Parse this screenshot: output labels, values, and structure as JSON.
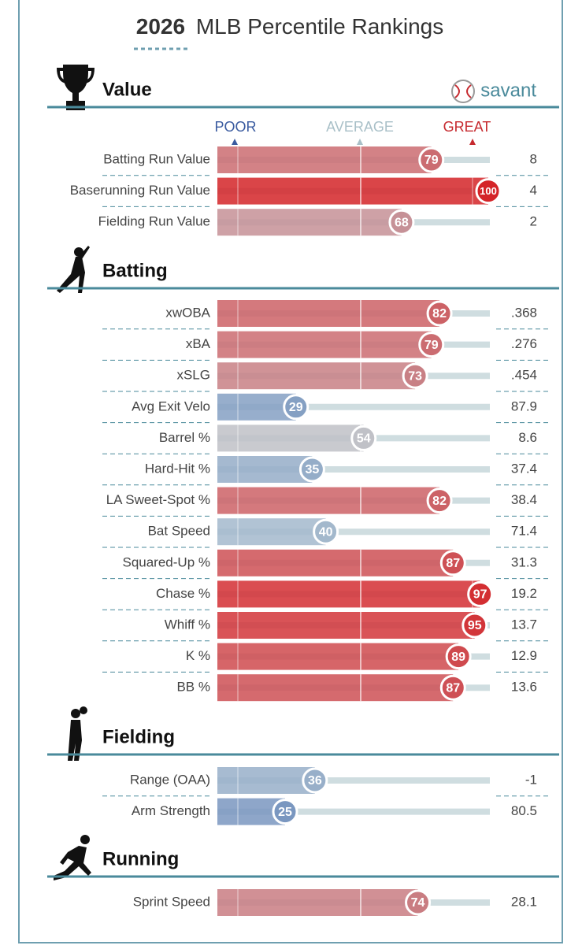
{
  "header": {
    "year": "2026",
    "title": "MLB Percentile Rankings",
    "logo": "savant"
  },
  "scale": {
    "poor": "POOR",
    "average": "AVERAGE",
    "great": "GREAT"
  },
  "sections": [
    {
      "title": "Value",
      "rows": [
        {
          "label": "Batting Run Value",
          "percentile": 79,
          "value": "8"
        },
        {
          "label": "Baserunning Run Value",
          "percentile": 100,
          "value": "4"
        },
        {
          "label": "Fielding Run Value",
          "percentile": 68,
          "value": "2"
        }
      ]
    },
    {
      "title": "Batting",
      "rows": [
        {
          "label": "xwOBA",
          "percentile": 82,
          "value": ".368"
        },
        {
          "label": "xBA",
          "percentile": 79,
          "value": ".276"
        },
        {
          "label": "xSLG",
          "percentile": 73,
          "value": ".454"
        },
        {
          "label": "Avg Exit Velo",
          "percentile": 29,
          "value": "87.9"
        },
        {
          "label": "Barrel %",
          "percentile": 54,
          "value": "8.6"
        },
        {
          "label": "Hard-Hit %",
          "percentile": 35,
          "value": "37.4"
        },
        {
          "label": "LA Sweet-Spot %",
          "percentile": 82,
          "value": "38.4"
        },
        {
          "label": "Bat Speed",
          "percentile": 40,
          "value": "71.4"
        },
        {
          "label": "Squared-Up %",
          "percentile": 87,
          "value": "31.3"
        },
        {
          "label": "Chase %",
          "percentile": 97,
          "value": "19.2"
        },
        {
          "label": "Whiff %",
          "percentile": 95,
          "value": "13.7"
        },
        {
          "label": "K %",
          "percentile": 89,
          "value": "12.9"
        },
        {
          "label": "BB %",
          "percentile": 87,
          "value": "13.6"
        }
      ]
    },
    {
      "title": "Fielding",
      "rows": [
        {
          "label": "Range (OAA)",
          "percentile": 36,
          "value": "-1"
        },
        {
          "label": "Arm Strength",
          "percentile": 25,
          "value": "80.5"
        }
      ]
    },
    {
      "title": "Running",
      "rows": [
        {
          "label": "Sprint Speed",
          "percentile": 74,
          "value": "28.1"
        }
      ]
    }
  ]
}
